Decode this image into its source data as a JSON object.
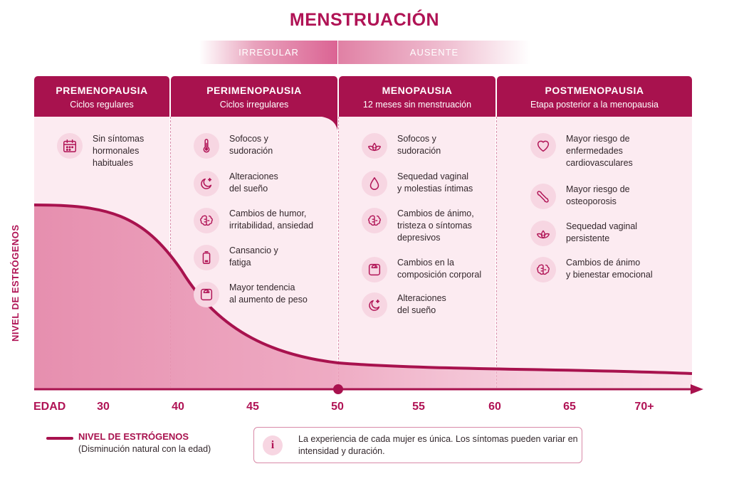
{
  "title": "MENSTRUACIÓN",
  "menstruation_bands": {
    "irregular": "IRREGULAR",
    "absent": "AUSENTE"
  },
  "stages": [
    {
      "title": "PREMENOPAUSIA",
      "subtitle": "Ciclos regulares",
      "symptoms": [
        {
          "icon": "calendar-icon",
          "text": "Sin síntomas\nhormonales\nhabituales"
        }
      ]
    },
    {
      "title": "PERIMENOPAUSIA",
      "subtitle": "Ciclos irregulares",
      "symptoms": [
        {
          "icon": "thermometer-icon",
          "text": "Sofocos y\nsudoración"
        },
        {
          "icon": "moon-icon",
          "text": "Alteraciones\ndel sueño"
        },
        {
          "icon": "brain-icon",
          "text": "Cambios de humor,\nirritabilidad, ansiedad"
        },
        {
          "icon": "battery-icon",
          "text": "Cansancio y\nfatiga"
        },
        {
          "icon": "scale-icon",
          "text": "Mayor tendencia\nal aumento de peso"
        }
      ]
    },
    {
      "title": "MENOPAUSIA",
      "subtitle": "12 meses sin menstruación",
      "symptoms": [
        {
          "icon": "lotus-icon",
          "text": "Sofocos y\nsudoración"
        },
        {
          "icon": "drop-icon",
          "text": "Sequedad vaginal\ny molestias íntimas"
        },
        {
          "icon": "brain-icon",
          "text": "Cambios de ánimo,\ntristeza o síntomas\ndepresivos"
        },
        {
          "icon": "scale-icon",
          "text": "Cambios en la\ncomposición corporal"
        },
        {
          "icon": "moon-icon",
          "text": "Alteraciones\ndel sueño"
        }
      ]
    },
    {
      "title": "POSTMENOPAUSIA",
      "subtitle": "Etapa posterior a la menopausia",
      "symptoms": [
        {
          "icon": "heart-icon",
          "text": "Mayor riesgo de\nenfermedades\ncardiovasculares"
        },
        {
          "icon": "bone-icon",
          "text": "Mayor riesgo de\nosteoporosis"
        },
        {
          "icon": "lotus-icon",
          "text": "Sequedad vaginal\npersistente"
        },
        {
          "icon": "brain-icon",
          "text": "Cambios de ánimo\ny bienestar emocional"
        }
      ]
    }
  ],
  "y_axis_label": "NIVEL DE ESTRÓGENOS",
  "x_axis": {
    "label": "EDAD",
    "ticks": [
      "30",
      "40",
      "45",
      "50",
      "55",
      "60",
      "65",
      "70+"
    ]
  },
  "legend": {
    "title": "NIVEL DE ESTRÓGENOS",
    "subtitle": "(Disminución natural con la edad)"
  },
  "note": {
    "icon": "info-icon",
    "text": "La experiencia de cada mujer es única. Los síntomas pueden variar en intensidad y duración."
  },
  "colors": {
    "primary": "#a8124e",
    "accent": "#b01355",
    "panel": "#fcebf1",
    "icon_bg": "#f7d6e2"
  }
}
